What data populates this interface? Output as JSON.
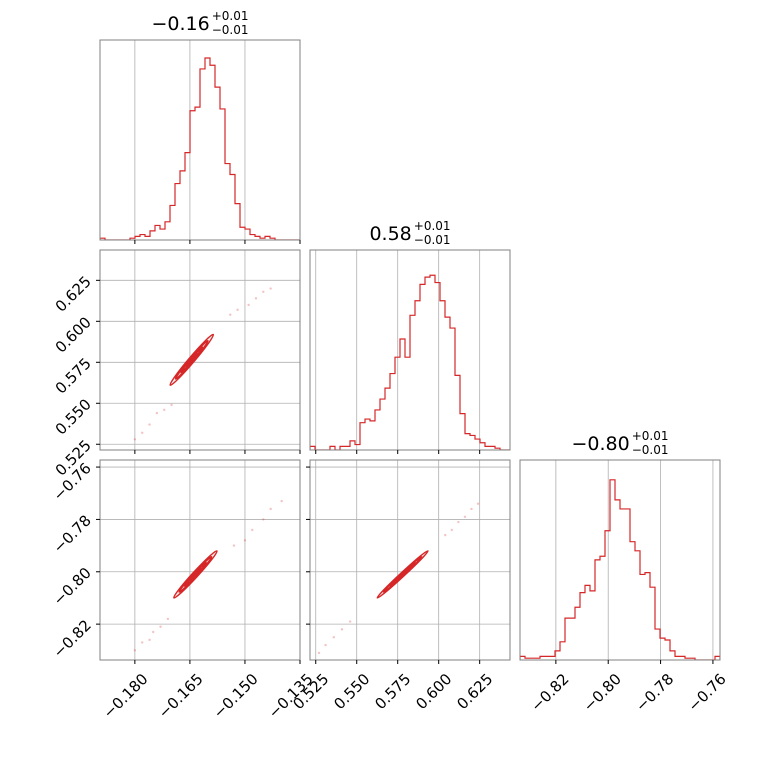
{
  "chart_data": {
    "type": "corner",
    "color": "#d62728",
    "grid": true,
    "parameters": [
      {
        "title": {
          "median": "−0.16",
          "plus": "+0.01",
          "minus": "−0.01"
        },
        "range": [
          -0.1895,
          -0.135
        ],
        "ticks": [
          {
            "value": -0.18,
            "label": "−0.180"
          },
          {
            "value": -0.165,
            "label": "−0.165"
          },
          {
            "value": -0.15,
            "label": "−0.150"
          },
          {
            "value": -0.135,
            "label": "−0.135"
          }
        ],
        "histogram": [
          0.01,
          0.0,
          0.0,
          0.0,
          0.0,
          0.0,
          0.01,
          0.02,
          0.03,
          0.02,
          0.05,
          0.08,
          0.06,
          0.1,
          0.19,
          0.31,
          0.38,
          0.48,
          0.71,
          0.73,
          0.94,
          1.0,
          0.96,
          0.84,
          0.72,
          0.42,
          0.36,
          0.2,
          0.07,
          0.06,
          0.03,
          0.02,
          0.01,
          0.02,
          0.01,
          0.0,
          0.0,
          0.0,
          0.0,
          0.0
        ]
      },
      {
        "title": {
          "median": "0.58",
          "plus": "+0.01",
          "minus": "−0.01"
        },
        "range": [
          0.5215,
          0.6435
        ],
        "ticks": [
          {
            "value": 0.525,
            "label": "0.525"
          },
          {
            "value": 0.55,
            "label": "0.550"
          },
          {
            "value": 0.575,
            "label": "0.575"
          },
          {
            "value": 0.6,
            "label": "0.600"
          },
          {
            "value": 0.625,
            "label": "0.625"
          }
        ],
        "histogram": [
          0.02,
          0.0,
          0.0,
          0.0,
          0.02,
          0.0,
          0.02,
          0.02,
          0.05,
          0.03,
          0.15,
          0.17,
          0.16,
          0.22,
          0.28,
          0.34,
          0.42,
          0.51,
          0.61,
          0.51,
          0.74,
          0.82,
          0.91,
          0.95,
          0.96,
          0.92,
          0.82,
          0.73,
          0.67,
          0.41,
          0.2,
          0.09,
          0.08,
          0.06,
          0.04,
          0.02,
          0.02,
          0.01,
          0.0,
          0.0
        ]
      },
      {
        "title": {
          "median": "−0.80",
          "plus": "+0.01",
          "minus": "−0.01"
        },
        "range": [
          -0.8337,
          -0.7573
        ],
        "ticks": [
          {
            "value": -0.82,
            "label": "−0.82"
          },
          {
            "value": -0.8,
            "label": "−0.80"
          },
          {
            "value": -0.78,
            "label": "−0.78"
          },
          {
            "value": -0.76,
            "label": "−0.76"
          }
        ],
        "histogram": [
          0.02,
          0.01,
          0.01,
          0.01,
          0.02,
          0.02,
          0.02,
          0.05,
          0.1,
          0.23,
          0.23,
          0.29,
          0.37,
          0.41,
          0.38,
          0.55,
          0.57,
          0.71,
          0.99,
          0.88,
          0.83,
          0.83,
          0.65,
          0.6,
          0.47,
          0.48,
          0.4,
          0.17,
          0.12,
          0.11,
          0.05,
          0.02,
          0.02,
          0.01,
          0.01,
          0.0,
          0.0,
          0.0,
          0.0,
          0.02
        ]
      }
    ],
    "pairs": [
      {
        "row": 1,
        "col": 0,
        "levels": [
          {
            "cx": -0.1645,
            "cy": 0.5765,
            "sx": 0.0059,
            "sy": 0.0155,
            "rho": 0.985
          },
          {
            "cx": -0.1645,
            "cy": 0.5765,
            "sx": 0.0044,
            "sy": 0.0116,
            "rho": 0.985
          },
          {
            "cx": -0.1645,
            "cy": 0.5765,
            "sx": 0.0029,
            "sy": 0.0076,
            "rho": 0.985
          },
          {
            "cx": -0.1645,
            "cy": 0.5765,
            "sx": 0.0014,
            "sy": 0.0037,
            "rho": 0.985
          }
        ],
        "outliers": [
          [
            -0.18,
            0.528
          ],
          [
            -0.178,
            0.532
          ],
          [
            -0.176,
            0.537
          ],
          [
            -0.174,
            0.544
          ],
          [
            -0.172,
            0.546
          ],
          [
            -0.17,
            0.549
          ],
          [
            -0.154,
            0.604
          ],
          [
            -0.152,
            0.607
          ],
          [
            -0.149,
            0.61
          ],
          [
            -0.147,
            0.614
          ],
          [
            -0.145,
            0.618
          ],
          [
            -0.143,
            0.62
          ]
        ]
      },
      {
        "row": 2,
        "col": 0,
        "levels": [
          {
            "cx": -0.1635,
            "cy": -0.801,
            "sx": 0.0059,
            "sy": 0.009,
            "rho": 0.985
          },
          {
            "cx": -0.1635,
            "cy": -0.801,
            "sx": 0.0044,
            "sy": 0.0067,
            "rho": 0.985
          },
          {
            "cx": -0.1635,
            "cy": -0.801,
            "sx": 0.0029,
            "sy": 0.0044,
            "rho": 0.985
          },
          {
            "cx": -0.1635,
            "cy": -0.801,
            "sx": 0.0014,
            "sy": 0.0021,
            "rho": 0.985
          }
        ],
        "outliers": [
          [
            -0.18,
            -0.83
          ],
          [
            -0.178,
            -0.827
          ],
          [
            -0.176,
            -0.826
          ],
          [
            -0.175,
            -0.823
          ],
          [
            -0.173,
            -0.821
          ],
          [
            -0.171,
            -0.818
          ],
          [
            -0.153,
            -0.79
          ],
          [
            -0.15,
            -0.788
          ],
          [
            -0.148,
            -0.784
          ],
          [
            -0.145,
            -0.78
          ],
          [
            -0.143,
            -0.776
          ],
          [
            -0.14,
            -0.773
          ]
        ]
      },
      {
        "row": 2,
        "col": 1,
        "levels": [
          {
            "cx": 0.578,
            "cy": -0.801,
            "sx": 0.0155,
            "sy": 0.009,
            "rho": 0.993
          },
          {
            "cx": 0.578,
            "cy": -0.801,
            "sx": 0.0116,
            "sy": 0.0067,
            "rho": 0.993
          },
          {
            "cx": 0.578,
            "cy": -0.801,
            "sx": 0.0076,
            "sy": 0.0044,
            "rho": 0.993
          },
          {
            "cx": 0.578,
            "cy": -0.801,
            "sx": 0.0037,
            "sy": 0.0021,
            "rho": 0.993
          }
        ],
        "outliers": [
          [
            0.527,
            -0.831
          ],
          [
            0.531,
            -0.828
          ],
          [
            0.536,
            -0.825
          ],
          [
            0.541,
            -0.822
          ],
          [
            0.546,
            -0.819
          ],
          [
            0.604,
            -0.786
          ],
          [
            0.608,
            -0.784
          ],
          [
            0.612,
            -0.781
          ],
          [
            0.616,
            -0.779
          ],
          [
            0.62,
            -0.776
          ],
          [
            0.624,
            -0.774
          ]
        ]
      }
    ]
  }
}
